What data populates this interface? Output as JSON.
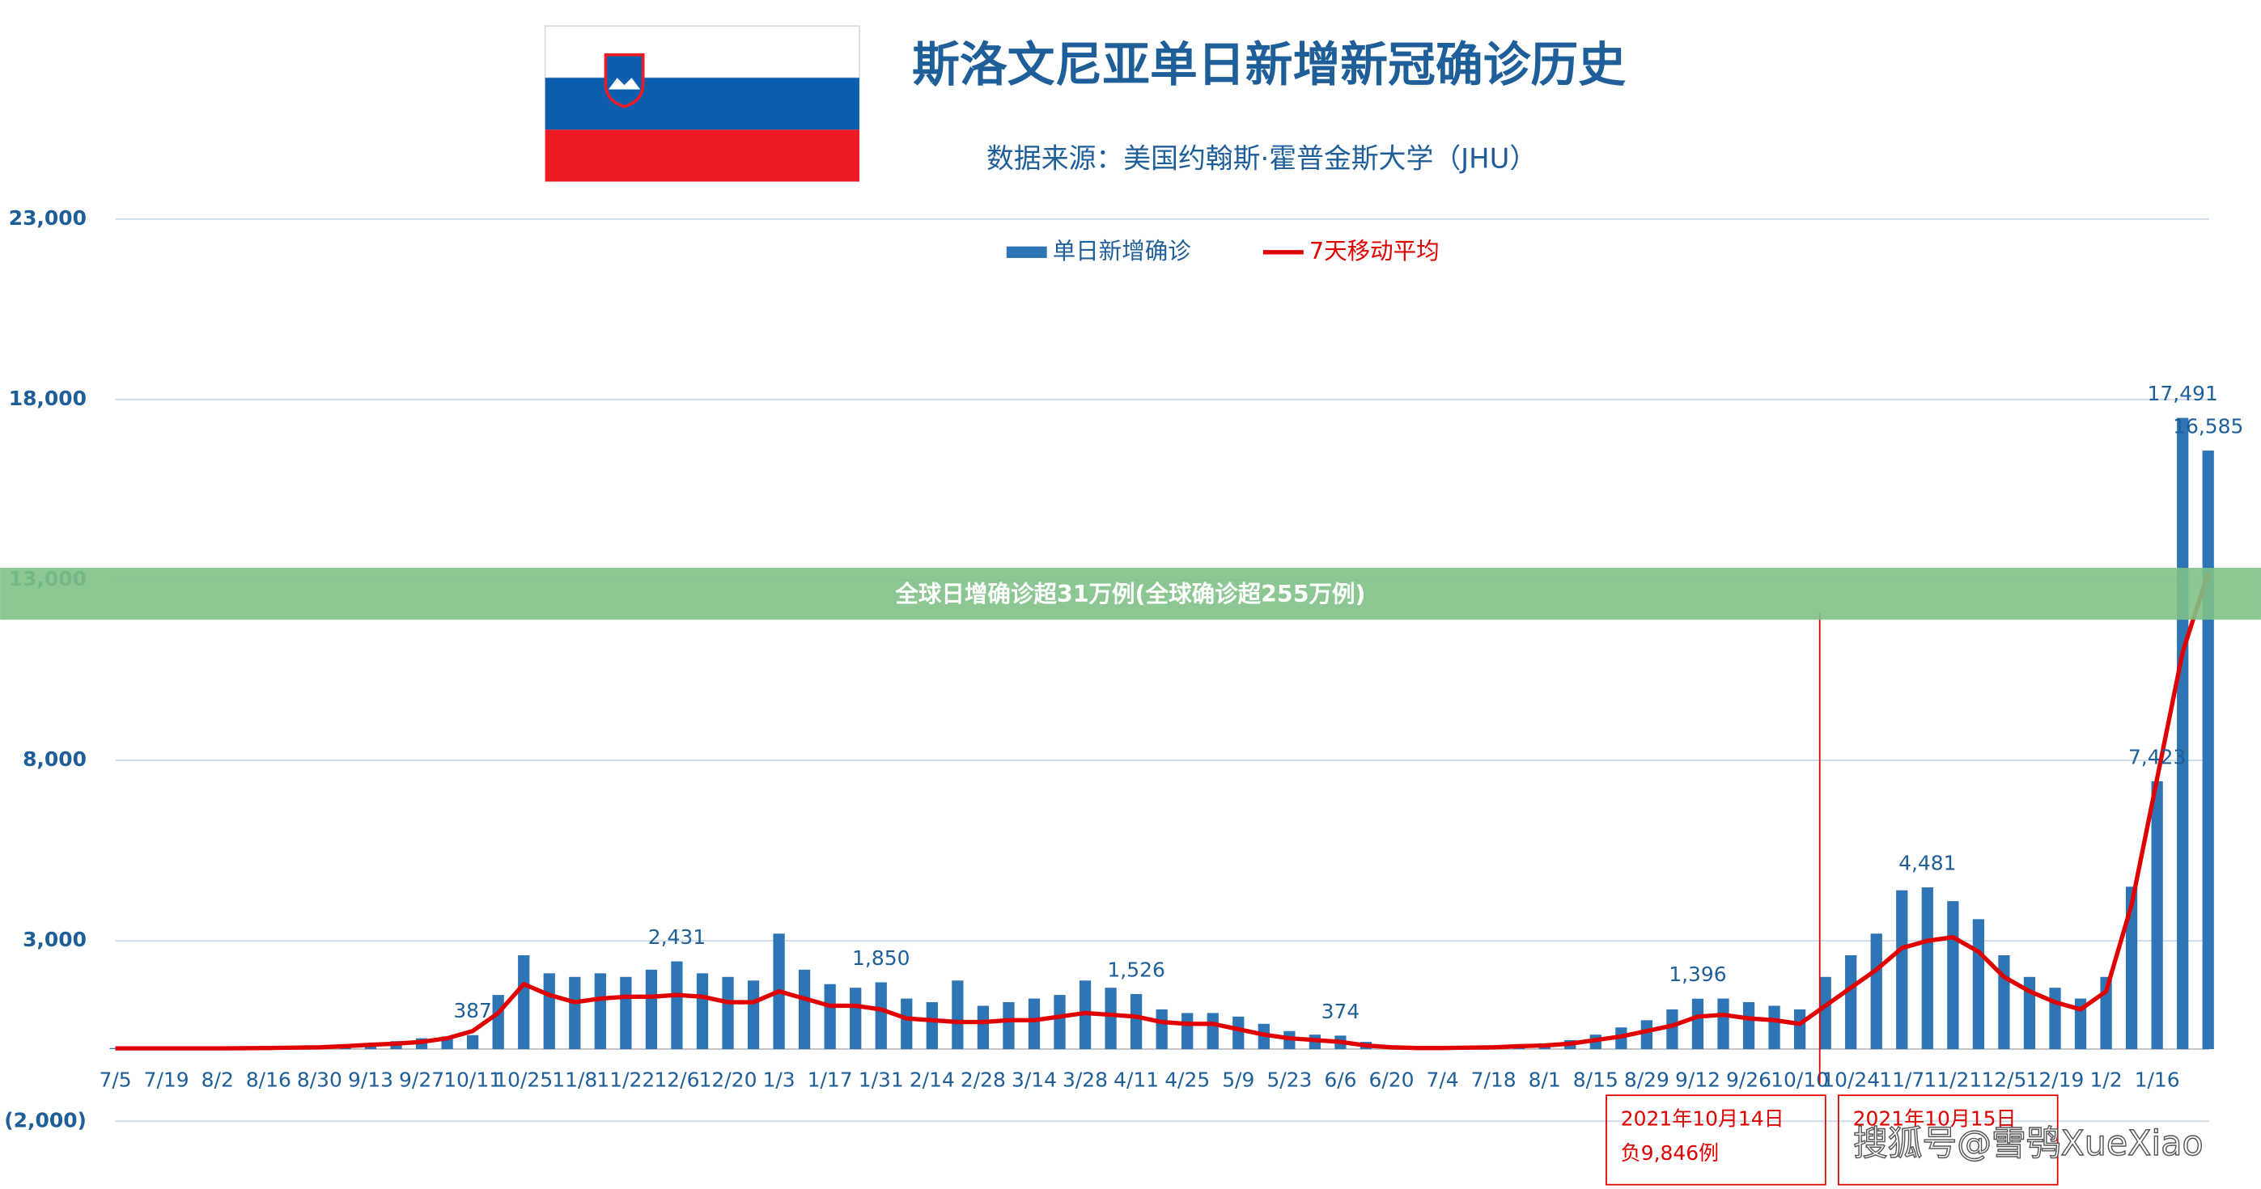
{
  "chart_data": {
    "type": "bar",
    "title": "斯洛文尼亚单日新增新冠确诊历史",
    "subtitle": "数据来源：美国约翰斯·霍普金斯大学（JHU）",
    "categories": [
      "7/5",
      null,
      "7/19",
      null,
      "8/2",
      null,
      "8/16",
      null,
      "8/30",
      null,
      "9/13",
      null,
      "9/27",
      null,
      "10/11",
      null,
      "10/25",
      null,
      "11/8",
      null,
      "11/22",
      null,
      "12/6",
      null,
      "12/20",
      null,
      "1/3",
      null,
      "1/17",
      null,
      "1/31",
      null,
      "2/14",
      null,
      "2/28",
      null,
      "3/14",
      null,
      "3/28",
      null,
      "4/11",
      null,
      "4/25",
      null,
      "5/9",
      null,
      "5/23",
      null,
      "6/6",
      null,
      "6/20",
      null,
      "7/4",
      null,
      "7/18",
      null,
      "8/1",
      null,
      "8/15",
      null,
      "8/29",
      null,
      "9/12",
      null,
      "9/26",
      null,
      "10/10",
      null,
      "10/24",
      null,
      "11/7",
      null,
      "11/21",
      null,
      "12/5",
      null,
      "12/19",
      null,
      "1/2",
      null,
      "1/16",
      null,
      null
    ],
    "series": [
      {
        "name": "单日新增确诊",
        "color": "#2e75b6",
        "values": [
          30,
          30,
          30,
          30,
          30,
          40,
          50,
          60,
          80,
          130,
          170,
          220,
          300,
          350,
          387,
          1500,
          2600,
          2100,
          2000,
          2100,
          2000,
          2200,
          2431,
          2100,
          2000,
          1900,
          3200,
          2200,
          1800,
          1700,
          1850,
          1400,
          1300,
          1900,
          1200,
          1300,
          1400,
          1500,
          1900,
          1700,
          1526,
          1100,
          1000,
          1000,
          900,
          700,
          500,
          400,
          374,
          200,
          100,
          60,
          60,
          70,
          90,
          130,
          160,
          250,
          400,
          600,
          800,
          1100,
          1396,
          1400,
          1300,
          1200,
          1100,
          2000,
          2600,
          3200,
          4400,
          4481,
          4100,
          3600,
          2600,
          2000,
          1700,
          1400,
          2000,
          4500,
          7423,
          17491,
          16585
        ],
        "value_labels": [
          null,
          null,
          null,
          null,
          null,
          null,
          null,
          null,
          null,
          null,
          null,
          null,
          null,
          null,
          "387",
          null,
          null,
          null,
          null,
          null,
          null,
          null,
          "2,431",
          null,
          null,
          null,
          null,
          null,
          null,
          null,
          "1,850",
          null,
          null,
          null,
          null,
          null,
          null,
          null,
          null,
          null,
          "1,526",
          null,
          null,
          null,
          null,
          null,
          null,
          null,
          "374",
          null,
          null,
          null,
          null,
          null,
          null,
          null,
          null,
          null,
          null,
          null,
          null,
          null,
          "1,396",
          null,
          null,
          null,
          null,
          null,
          null,
          null,
          null,
          "4,481",
          null,
          null,
          null,
          null,
          null,
          null,
          null,
          null,
          "7,423",
          "17,491",
          "16,585"
        ]
      },
      {
        "name": "7天移动平均",
        "color": "#e00000",
        "type": "line",
        "values": [
          20,
          20,
          20,
          20,
          20,
          25,
          30,
          40,
          50,
          80,
          120,
          150,
          200,
          300,
          500,
          1000,
          1800,
          1500,
          1300,
          1400,
          1450,
          1450,
          1500,
          1450,
          1300,
          1300,
          1600,
          1400,
          1200,
          1200,
          1100,
          850,
          800,
          750,
          750,
          800,
          800,
          900,
          1000,
          950,
          900,
          750,
          700,
          700,
          550,
          400,
          300,
          250,
          200,
          100,
          50,
          30,
          30,
          40,
          50,
          80,
          100,
          150,
          250,
          350,
          500,
          650,
          900,
          950,
          850,
          800,
          700,
          1200,
          1700,
          2200,
          2800,
          3000,
          3100,
          2700,
          2000,
          1600,
          1300,
          1100,
          1600,
          4000,
          7500,
          11000,
          13200
        ]
      }
    ],
    "ylim": [
      -2000,
      23000
    ],
    "yticks": [
      {
        "value": -2000,
        "label": "(2,000)"
      },
      {
        "value": 3000,
        "label": "3,000"
      },
      {
        "value": 8000,
        "label": "8,000"
      },
      {
        "value": 13000,
        "label": "13,000"
      },
      {
        "value": 18000,
        "label": "18,000"
      },
      {
        "value": 23000,
        "label": "23,000"
      }
    ],
    "grid": true,
    "legend": "top",
    "annotations": [
      "2021年10月14日",
      "负9,846例",
      "2021年10月15日"
    ]
  },
  "banner": "全球日增确诊超31万例(全球确诊超255万例)",
  "watermark": "搜狐号@雪鸮XueXiao"
}
